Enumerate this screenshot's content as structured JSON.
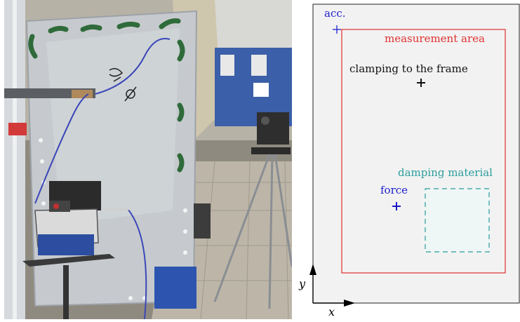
{
  "photo": {
    "alt_icon": "test-rig-photo"
  },
  "diagram": {
    "labels": {
      "acc": "acc.",
      "measurement_area": "measurement area",
      "clamping": "clamping to the frame",
      "damping": "damping material",
      "force": "force",
      "x_axis": "x",
      "y_axis": "y"
    },
    "colors": {
      "panel_fill": "#f2f2f2",
      "measurement_area": "#e03030",
      "acc": "#2020cc",
      "force": "#1a1acc",
      "damping": "#2a9d9d",
      "damping_fill": "#eef7f6",
      "clamping": "#111111"
    }
  }
}
